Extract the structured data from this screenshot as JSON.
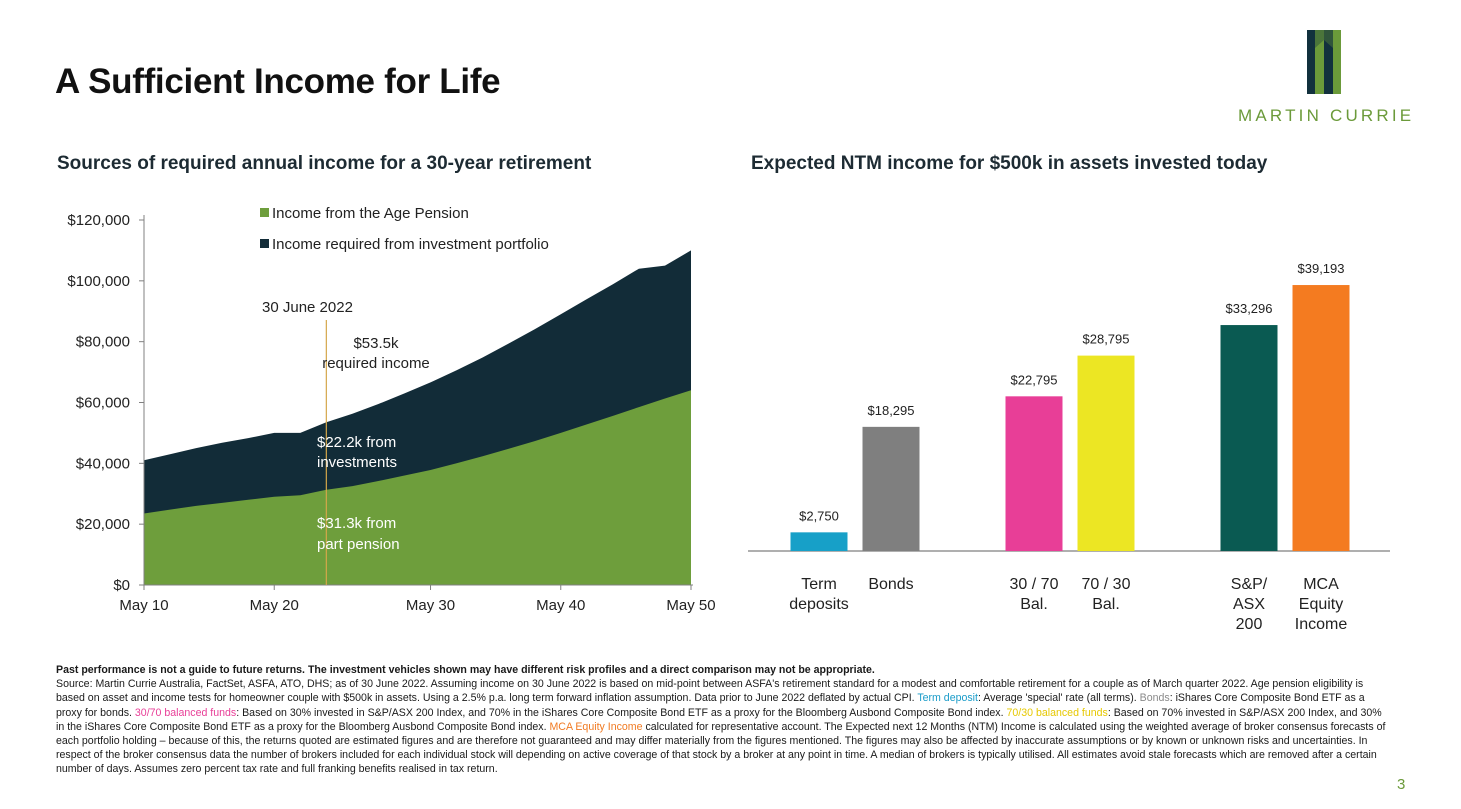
{
  "slide": {
    "title": "A Sufficient Income for Life",
    "page_number": "3"
  },
  "logo": {
    "text": "MARTIN CURRIE",
    "colors": {
      "dark": "#12313d",
      "green": "#6b9a3a"
    }
  },
  "left_chart_title": "Sources of required annual income for a 30-year retirement",
  "right_chart_title": "Expected NTM income for $500k in assets invested today",
  "chart_data": [
    {
      "type": "area",
      "title": "Sources of required annual income for a 30-year retirement",
      "stacked": true,
      "x": [
        "May 10",
        "May 12",
        "May 14",
        "May 16",
        "May 18",
        "May 20",
        "May 22",
        "Jun 22",
        "May 24",
        "May 26",
        "May 28",
        "May 30",
        "May 32",
        "May 34",
        "May 36",
        "May 38",
        "May 40",
        "May 42",
        "May 44",
        "May 46",
        "May 48",
        "May 50"
      ],
      "x_ticks": [
        "May 10",
        "May 20",
        "May 30",
        "May 40",
        "May 50"
      ],
      "y_ticks": [
        "$0",
        "$20,000",
        "$40,000",
        "$60,000",
        "$80,000",
        "$100,000",
        "$120,000"
      ],
      "ylim": [
        0,
        120000
      ],
      "series": [
        {
          "name": "Income from the Age Pension",
          "color": "#6e9e3c",
          "values": [
            23500,
            24800,
            26000,
            27000,
            28000,
            29000,
            29500,
            31300,
            32500,
            34200,
            36000,
            37800,
            40000,
            42300,
            44800,
            47300,
            50000,
            52800,
            55600,
            58500,
            61300,
            64000
          ]
        },
        {
          "name": "Income required from investment portfolio",
          "color": "#122c38",
          "values": [
            17500,
            18200,
            19000,
            19800,
            20300,
            21000,
            20500,
            22200,
            23800,
            25300,
            27000,
            28800,
            30600,
            32500,
            34600,
            36800,
            39000,
            41200,
            43300,
            45500,
            43700,
            46000
          ]
        }
      ],
      "annotations": {
        "date_marker": "30 June 2022",
        "required_value": "$53.5k",
        "required_label": "required income",
        "investments_value": "$22.2k from",
        "investments_label": "investments",
        "pension_value": "$31.3k from",
        "pension_label": "part pension"
      },
      "legend": "top"
    },
    {
      "type": "bar",
      "title": "Expected NTM income for $500k in assets invested today",
      "categories": [
        {
          "lines": [
            "Term",
            "deposits"
          ]
        },
        {
          "lines": [
            "Bonds"
          ]
        },
        {
          "lines": [
            "30 / 70",
            "Bal."
          ]
        },
        {
          "lines": [
            "70 / 30",
            "Bal."
          ]
        },
        {
          "lines": [
            "S&P/",
            "ASX",
            "200"
          ]
        },
        {
          "lines": [
            "MCA",
            "Equity",
            "Income"
          ]
        }
      ],
      "values": [
        2750,
        18295,
        22795,
        28795,
        33296,
        39193
      ],
      "value_labels": [
        "$2,750",
        "$18,295",
        "$22,795",
        "$28,795",
        "$33,296",
        "$39,193"
      ],
      "colors": [
        "#17a0c8",
        "#7f7f7f",
        "#e83e97",
        "#ece623",
        "#0a5a52",
        "#f47b20"
      ],
      "groups": [
        [
          0,
          1
        ],
        [
          2,
          3
        ],
        [
          4,
          5
        ]
      ],
      "ylim": [
        0,
        42000
      ],
      "grid": false
    }
  ],
  "footnote": {
    "disclaimer": "Past performance is not a guide to future returns. The investment vehicles shown may have different risk profiles and a direct comparison may not be appropriate.",
    "p1": "Source: Martin Currie Australia, FactSet, ASFA, ATO, DHS; as of 30 June 2022.  Assuming income on 30 June 2022 is based on mid-point between ASFA's retirement standard for a modest and comfortable retirement for a couple as of March quarter 2022.  Age pension eligibility is based on asset and income tests for homeowner couple with $500k in assets. Using a 2.5% p.a. long term forward inflation assumption. Data prior to June 2022 deflated by actual CPI. ",
    "term_label": "Term deposit",
    "p2": ": Average 'special' rate (all terms). ",
    "bonds_label": "Bonds",
    "p3": ": iShares Core Composite Bond ETF as a proxy for bonds. ",
    "b3070_label": "30/70 balanced funds",
    "p4": ": Based on 30% invested in S&P/ASX 200 Index, and 70% in the iShares Core Composite Bond ETF as a proxy for the Bloomberg Ausbond Composite Bond index. ",
    "b7030_label": "70/30 balanced funds",
    "p5": ": Based on 70% invested in S&P/ASX 200 Index, and 30% in the iShares Core Composite Bond ETF as a proxy for the Bloomberg Ausbond Composite Bond index. ",
    "mca_label": "MCA Equity Income",
    "p6": " calculated for representative account. The Expected next 12 Months (NTM) Income is calculated using the weighted average of broker consensus forecasts of each portfolio holding – because of this, the returns quoted are estimated figures and are therefore not guaranteed and may differ materially from the figures mentioned. The figures may also be affected by inaccurate assumptions or by known or unknown risks and uncertainties. In respect of the broker consensus data the number of brokers included for each individual stock will depending on active coverage of that stock by a broker at any point in time. A median of brokers is typically utilised. All estimates avoid stale forecasts which are removed after a certain number of days. Assumes zero percent tax rate and full franking benefits realised in tax return."
  }
}
